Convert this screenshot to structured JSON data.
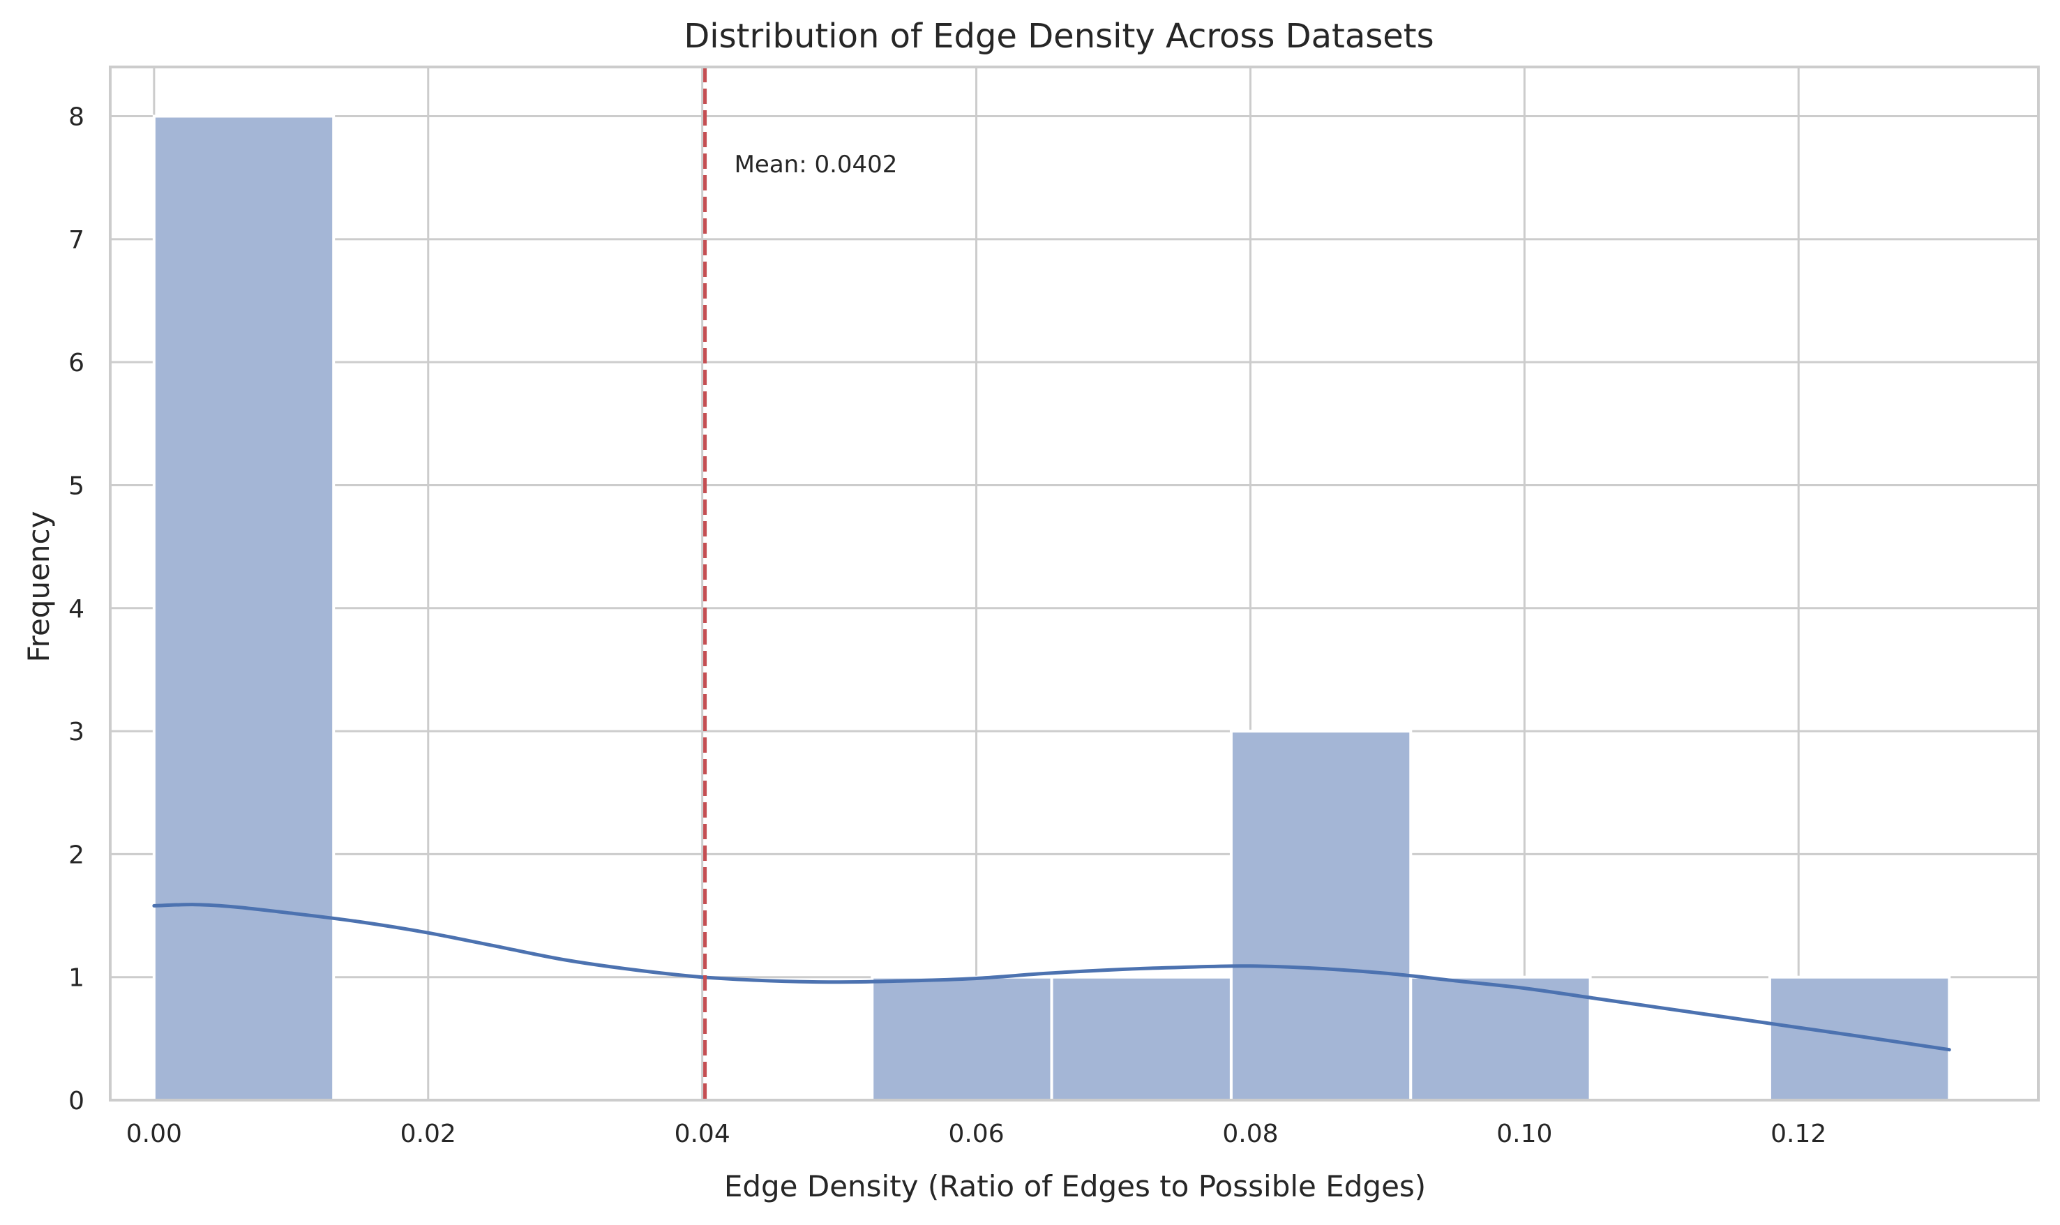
{
  "chart_data": {
    "type": "bar",
    "title": "Distribution of Edge Density Across Datasets",
    "xlabel": "Edge Density (Ratio of Edges to Possible Edges)",
    "ylabel": "Frequency",
    "xlim": [
      -0.0032,
      0.1375
    ],
    "ylim": [
      0,
      8.4
    ],
    "x_ticks": [
      0.0,
      0.02,
      0.04,
      0.06,
      0.08,
      0.1,
      0.12
    ],
    "x_tick_labels": [
      "0.00",
      "0.02",
      "0.04",
      "0.06",
      "0.08",
      "0.10",
      "0.12"
    ],
    "y_ticks": [
      0,
      1,
      2,
      3,
      4,
      5,
      6,
      7,
      8
    ],
    "y_tick_labels": [
      "0",
      "1",
      "2",
      "3",
      "4",
      "5",
      "6",
      "7",
      "8"
    ],
    "grid": true,
    "bins": [
      {
        "x0": 0.0,
        "x1": 0.0131,
        "count": 8
      },
      {
        "x0": 0.0131,
        "x1": 0.0262,
        "count": 0
      },
      {
        "x0": 0.0262,
        "x1": 0.0393,
        "count": 0
      },
      {
        "x0": 0.0393,
        "x1": 0.0524,
        "count": 0
      },
      {
        "x0": 0.0524,
        "x1": 0.0655,
        "count": 1
      },
      {
        "x0": 0.0655,
        "x1": 0.0786,
        "count": 1
      },
      {
        "x0": 0.0786,
        "x1": 0.0917,
        "count": 3
      },
      {
        "x0": 0.0917,
        "x1": 0.1048,
        "count": 1
      },
      {
        "x0": 0.1048,
        "x1": 0.1179,
        "count": 0
      },
      {
        "x0": 0.1179,
        "x1": 0.131,
        "count": 1
      }
    ],
    "kde": {
      "x": [
        0.0,
        0.003,
        0.006,
        0.01,
        0.015,
        0.02,
        0.025,
        0.03,
        0.035,
        0.04,
        0.045,
        0.05,
        0.055,
        0.06,
        0.065,
        0.07,
        0.075,
        0.08,
        0.085,
        0.09,
        0.095,
        0.1,
        0.105,
        0.11,
        0.115,
        0.12,
        0.125,
        0.131
      ],
      "y": [
        1.58,
        1.59,
        1.57,
        1.52,
        1.45,
        1.36,
        1.25,
        1.14,
        1.06,
        1.0,
        0.97,
        0.96,
        0.97,
        0.99,
        1.03,
        1.06,
        1.08,
        1.09,
        1.07,
        1.03,
        0.97,
        0.91,
        0.83,
        0.75,
        0.67,
        0.59,
        0.51,
        0.41
      ]
    },
    "mean_line": {
      "x": 0.0402,
      "label": "Mean: 0.0402"
    },
    "colors": {
      "bar_fill": "#a4b6d6",
      "bar_edge": "#ffffff",
      "kde_line": "#4c72b0",
      "mean_line": "#c44e52",
      "grid": "#cccccc",
      "spine": "#cccccc"
    }
  }
}
